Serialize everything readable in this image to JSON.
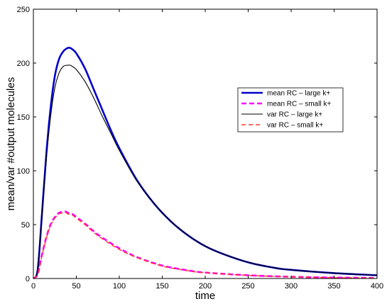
{
  "chart_data": {
    "type": "line",
    "title": "",
    "xlabel": "time",
    "ylabel": "mean/var #output molecules",
    "xlim": [
      0,
      400
    ],
    "ylim": [
      0,
      250
    ],
    "xticks": [
      0,
      50,
      100,
      150,
      200,
      250,
      300,
      350,
      400
    ],
    "yticks": [
      0,
      50,
      100,
      150,
      200,
      250
    ],
    "grid": false,
    "legend_position": "right",
    "series": [
      {
        "name": "mean RC – large k+",
        "color": "#0000cc",
        "style": "solid-thick",
        "x": [
          0,
          5,
          10,
          15,
          20,
          25,
          30,
          35,
          40,
          43,
          45,
          50,
          60,
          70,
          80,
          90,
          100,
          120,
          140,
          160,
          180,
          200,
          220,
          250,
          280,
          300,
          350,
          400
        ],
        "y": [
          0,
          8,
          60,
          115,
          158,
          188,
          204,
          211,
          214,
          214,
          213,
          209,
          195,
          176,
          157,
          138,
          121,
          92,
          70,
          53,
          40,
          30,
          23,
          15,
          10,
          8,
          5,
          3
        ]
      },
      {
        "name": "mean RC – small k+",
        "color": "#ff00ff",
        "style": "dashed-thick",
        "x": [
          0,
          5,
          10,
          15,
          20,
          25,
          30,
          35,
          38,
          40,
          45,
          50,
          60,
          70,
          80,
          100,
          120,
          150,
          180,
          200,
          250,
          300,
          350,
          400
        ],
        "y": [
          0,
          4,
          22,
          38,
          50,
          57,
          61,
          62,
          62,
          61,
          60,
          57,
          51,
          44,
          38,
          28,
          20,
          12,
          7.5,
          5.5,
          3,
          1.6,
          0.9,
          0.5
        ]
      },
      {
        "name": "var RC – large k+",
        "color": "#000000",
        "style": "solid-thin",
        "x": [
          0,
          5,
          10,
          15,
          20,
          25,
          30,
          35,
          40,
          43,
          45,
          50,
          60,
          70,
          80,
          90,
          100,
          120,
          140,
          160,
          180,
          200,
          220,
          250,
          280,
          300,
          350,
          400
        ],
        "y": [
          0,
          8,
          58,
          110,
          150,
          177,
          191,
          197,
          198,
          198,
          197,
          194,
          183,
          168,
          151,
          135,
          119,
          91,
          70,
          53,
          40,
          30,
          23,
          15,
          10,
          8,
          5,
          3
        ]
      },
      {
        "name": "var RC – small k+",
        "color": "#ff3333",
        "style": "dashed-thin",
        "x": [
          0,
          5,
          10,
          15,
          20,
          25,
          30,
          35,
          38,
          40,
          45,
          50,
          60,
          70,
          80,
          100,
          120,
          150,
          180,
          200,
          250,
          300,
          350,
          400
        ],
        "y": [
          0,
          4,
          21,
          37,
          49,
          56,
          60,
          61,
          61,
          60,
          59,
          56,
          50,
          43,
          37,
          27,
          19.5,
          11.5,
          7.2,
          5.3,
          2.9,
          1.5,
          0.8,
          0.4
        ]
      }
    ]
  }
}
